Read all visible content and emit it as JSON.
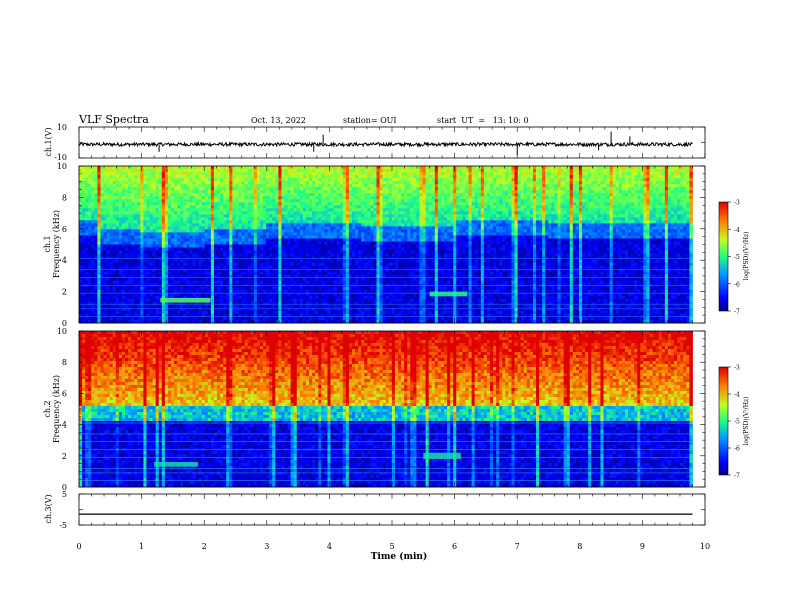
{
  "header": {
    "title": "VLF Spectra",
    "date": "Oct. 13, 2022",
    "station": "station= OUI",
    "start": "start  UT  =   13: 10: 0"
  },
  "chart_data": [
    {
      "type": "line",
      "panel": "ch1-waveform",
      "ylabel": "ch.1(V)",
      "yticks": [
        "10",
        "-10"
      ],
      "ylim": [
        -10,
        10
      ],
      "xlim": [
        0,
        10
      ],
      "baseline_v": -1.2,
      "spikes": [
        {
          "t": 1.28,
          "v": -6
        },
        {
          "t": 3.75,
          "v": -6
        },
        {
          "t": 3.9,
          "v": 5
        },
        {
          "t": 7.0,
          "v": -8
        },
        {
          "t": 8.3,
          "v": -5
        },
        {
          "t": 8.5,
          "v": 7
        },
        {
          "t": 8.8,
          "v": 4
        }
      ]
    },
    {
      "type": "heatmap",
      "panel": "ch1-spectrogram",
      "ylabel": "ch.1\nFrequency (kHz)",
      "ylabel_line1": "ch.1",
      "ylabel_line2": "Frequency (kHz)",
      "yticks": [
        "0",
        "2",
        "4",
        "6",
        "8",
        "10"
      ],
      "ylim": [
        0,
        10
      ],
      "xlim": [
        0,
        10
      ],
      "data_end_min": 9.8,
      "colorbar": {
        "label": "log(PSD)(V²/Hz)",
        "ticks": [
          "-3",
          "-4",
          "-5",
          "-6",
          "-7"
        ],
        "range": [
          -7,
          -3
        ]
      },
      "bands": [
        {
          "t0": 0.0,
          "t1": 0.3,
          "top_khz": 6.5
        },
        {
          "t0": 0.3,
          "t1": 1.0,
          "top_khz": 6.0
        },
        {
          "t0": 1.0,
          "t1": 2.0,
          "top_khz": 5.8
        },
        {
          "t0": 2.0,
          "t1": 3.0,
          "top_khz": 6.0
        },
        {
          "t0": 3.0,
          "t1": 4.5,
          "top_khz": 6.4
        },
        {
          "t0": 4.5,
          "t1": 6.0,
          "top_khz": 6.1
        },
        {
          "t0": 6.0,
          "t1": 7.5,
          "top_khz": 6.5
        },
        {
          "t0": 7.5,
          "t1": 9.8,
          "top_khz": 6.4
        }
      ],
      "features": [
        {
          "t0": 1.3,
          "t1": 2.1,
          "f0": 1.3,
          "f1": 1.6,
          "level": -4.8
        },
        {
          "t0": 5.6,
          "t1": 6.2,
          "f0": 1.7,
          "f1": 2.0,
          "level": -5.0
        }
      ]
    },
    {
      "type": "heatmap",
      "panel": "ch2-spectrogram",
      "ylabel_line1": "ch.2",
      "ylabel_line2": "Frequency (kHz)",
      "yticks": [
        "0",
        "2",
        "4",
        "6",
        "8",
        "10"
      ],
      "ylim": [
        0,
        10
      ],
      "xlim": [
        0,
        10
      ],
      "data_end_min": 9.8,
      "colorbar": {
        "label": "log(PSD)(V²/Hz)",
        "ticks": [
          "-3",
          "-4",
          "-5",
          "-6",
          "-7"
        ],
        "range": [
          -7,
          -3
        ]
      },
      "bands": [
        {
          "t0": 0.0,
          "t1": 9.8,
          "top_khz": 5.2
        }
      ],
      "features": [
        {
          "t0": 1.2,
          "t1": 1.9,
          "f0": 1.3,
          "f1": 1.6,
          "level": -5.2
        },
        {
          "t0": 5.5,
          "t1": 6.1,
          "f0": 1.8,
          "f1": 2.2,
          "level": -5.2
        }
      ]
    },
    {
      "type": "line",
      "panel": "ch3-waveform",
      "ylabel": "ch.3(V)",
      "yticks": [
        "5",
        "-5"
      ],
      "ylim": [
        -5,
        5
      ],
      "xlim": [
        0,
        10
      ],
      "baseline_v": -1.5,
      "spikes": []
    }
  ],
  "xaxis": {
    "label": "Time (min)",
    "ticks": [
      "0",
      "1",
      "2",
      "3",
      "4",
      "5",
      "6",
      "7",
      "8",
      "9",
      "10"
    ]
  }
}
